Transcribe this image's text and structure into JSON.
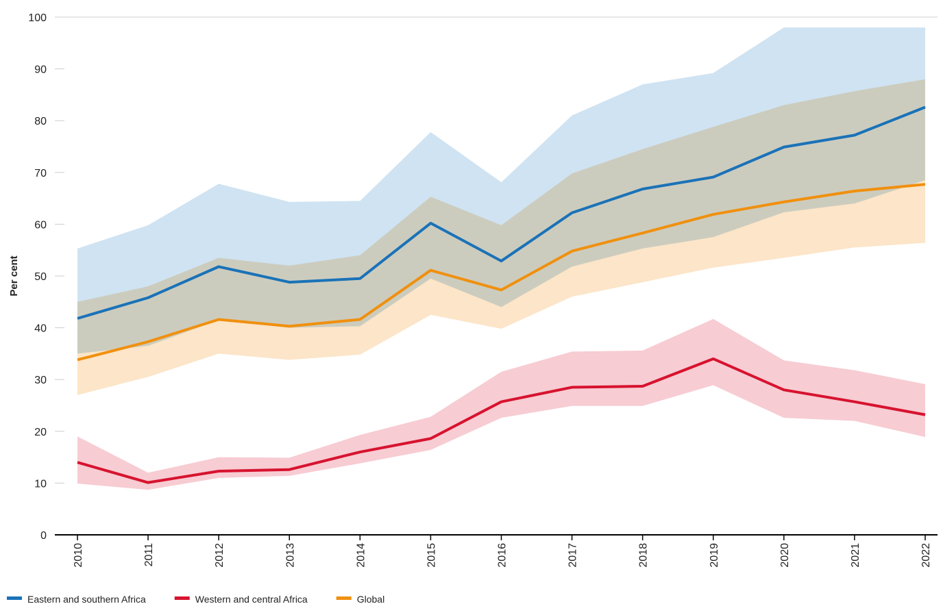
{
  "chart_data": {
    "type": "line",
    "y_label": "Per cent",
    "categories": [
      "2010",
      "2011",
      "2012",
      "2013",
      "2014",
      "2015",
      "2016",
      "2017",
      "2018",
      "2019",
      "2020",
      "2021",
      "2022"
    ],
    "ylim": [
      0,
      100
    ],
    "yticks": [
      0,
      10,
      20,
      30,
      40,
      50,
      60,
      70,
      80,
      90,
      100
    ],
    "series": [
      {
        "name": "Eastern and southern Africa",
        "color": "#1a72b8",
        "band_color": "#cfe3f2",
        "values": [
          41.8,
          45.8,
          51.8,
          48.8,
          49.5,
          60.2,
          52.9,
          62.2,
          66.8,
          69.1,
          74.9,
          77.2,
          82.6
        ],
        "upper": [
          55.3,
          59.8,
          67.8,
          64.3,
          64.5,
          77.8,
          68.1,
          81,
          87,
          89.2,
          98,
          98,
          98
        ],
        "lower": [
          35,
          36.5,
          41.5,
          40,
          40.3,
          49.5,
          44,
          51.8,
          55.3,
          57.5,
          62.3,
          64,
          68.5
        ]
      },
      {
        "name": "Western and central Africa",
        "color": "#d7132f",
        "band_color": "#f7ccd3",
        "values": [
          14,
          10.1,
          12.3,
          12.6,
          16,
          18.6,
          25.7,
          28.5,
          28.7,
          34,
          28,
          25.7,
          23.2
        ],
        "upper": [
          19,
          12,
          15,
          14.9,
          19.3,
          22.8,
          31.5,
          35.4,
          35.6,
          41.7,
          33.7,
          31.8,
          29.1
        ],
        "lower": [
          9.9,
          8.7,
          11,
          11.4,
          13.8,
          16.4,
          22.6,
          24.9,
          24.9,
          28.9,
          22.6,
          22,
          18.9
        ]
      },
      {
        "name": "Global",
        "color": "#f0900f",
        "band_color": "#fce5c8",
        "values": [
          33.8,
          37.3,
          41.6,
          40.3,
          41.6,
          51.1,
          47.3,
          54.8,
          58.3,
          61.9,
          64.3,
          66.4,
          67.7
        ],
        "upper": [
          45,
          48,
          53.5,
          52,
          54,
          65.3,
          59.8,
          69.8,
          74.5,
          78.8,
          83,
          85.7,
          88
        ],
        "lower": [
          27,
          30.5,
          35,
          33.8,
          34.8,
          42.5,
          39.8,
          46,
          48.8,
          51.6,
          53.5,
          55.5,
          56.4
        ]
      }
    ]
  }
}
